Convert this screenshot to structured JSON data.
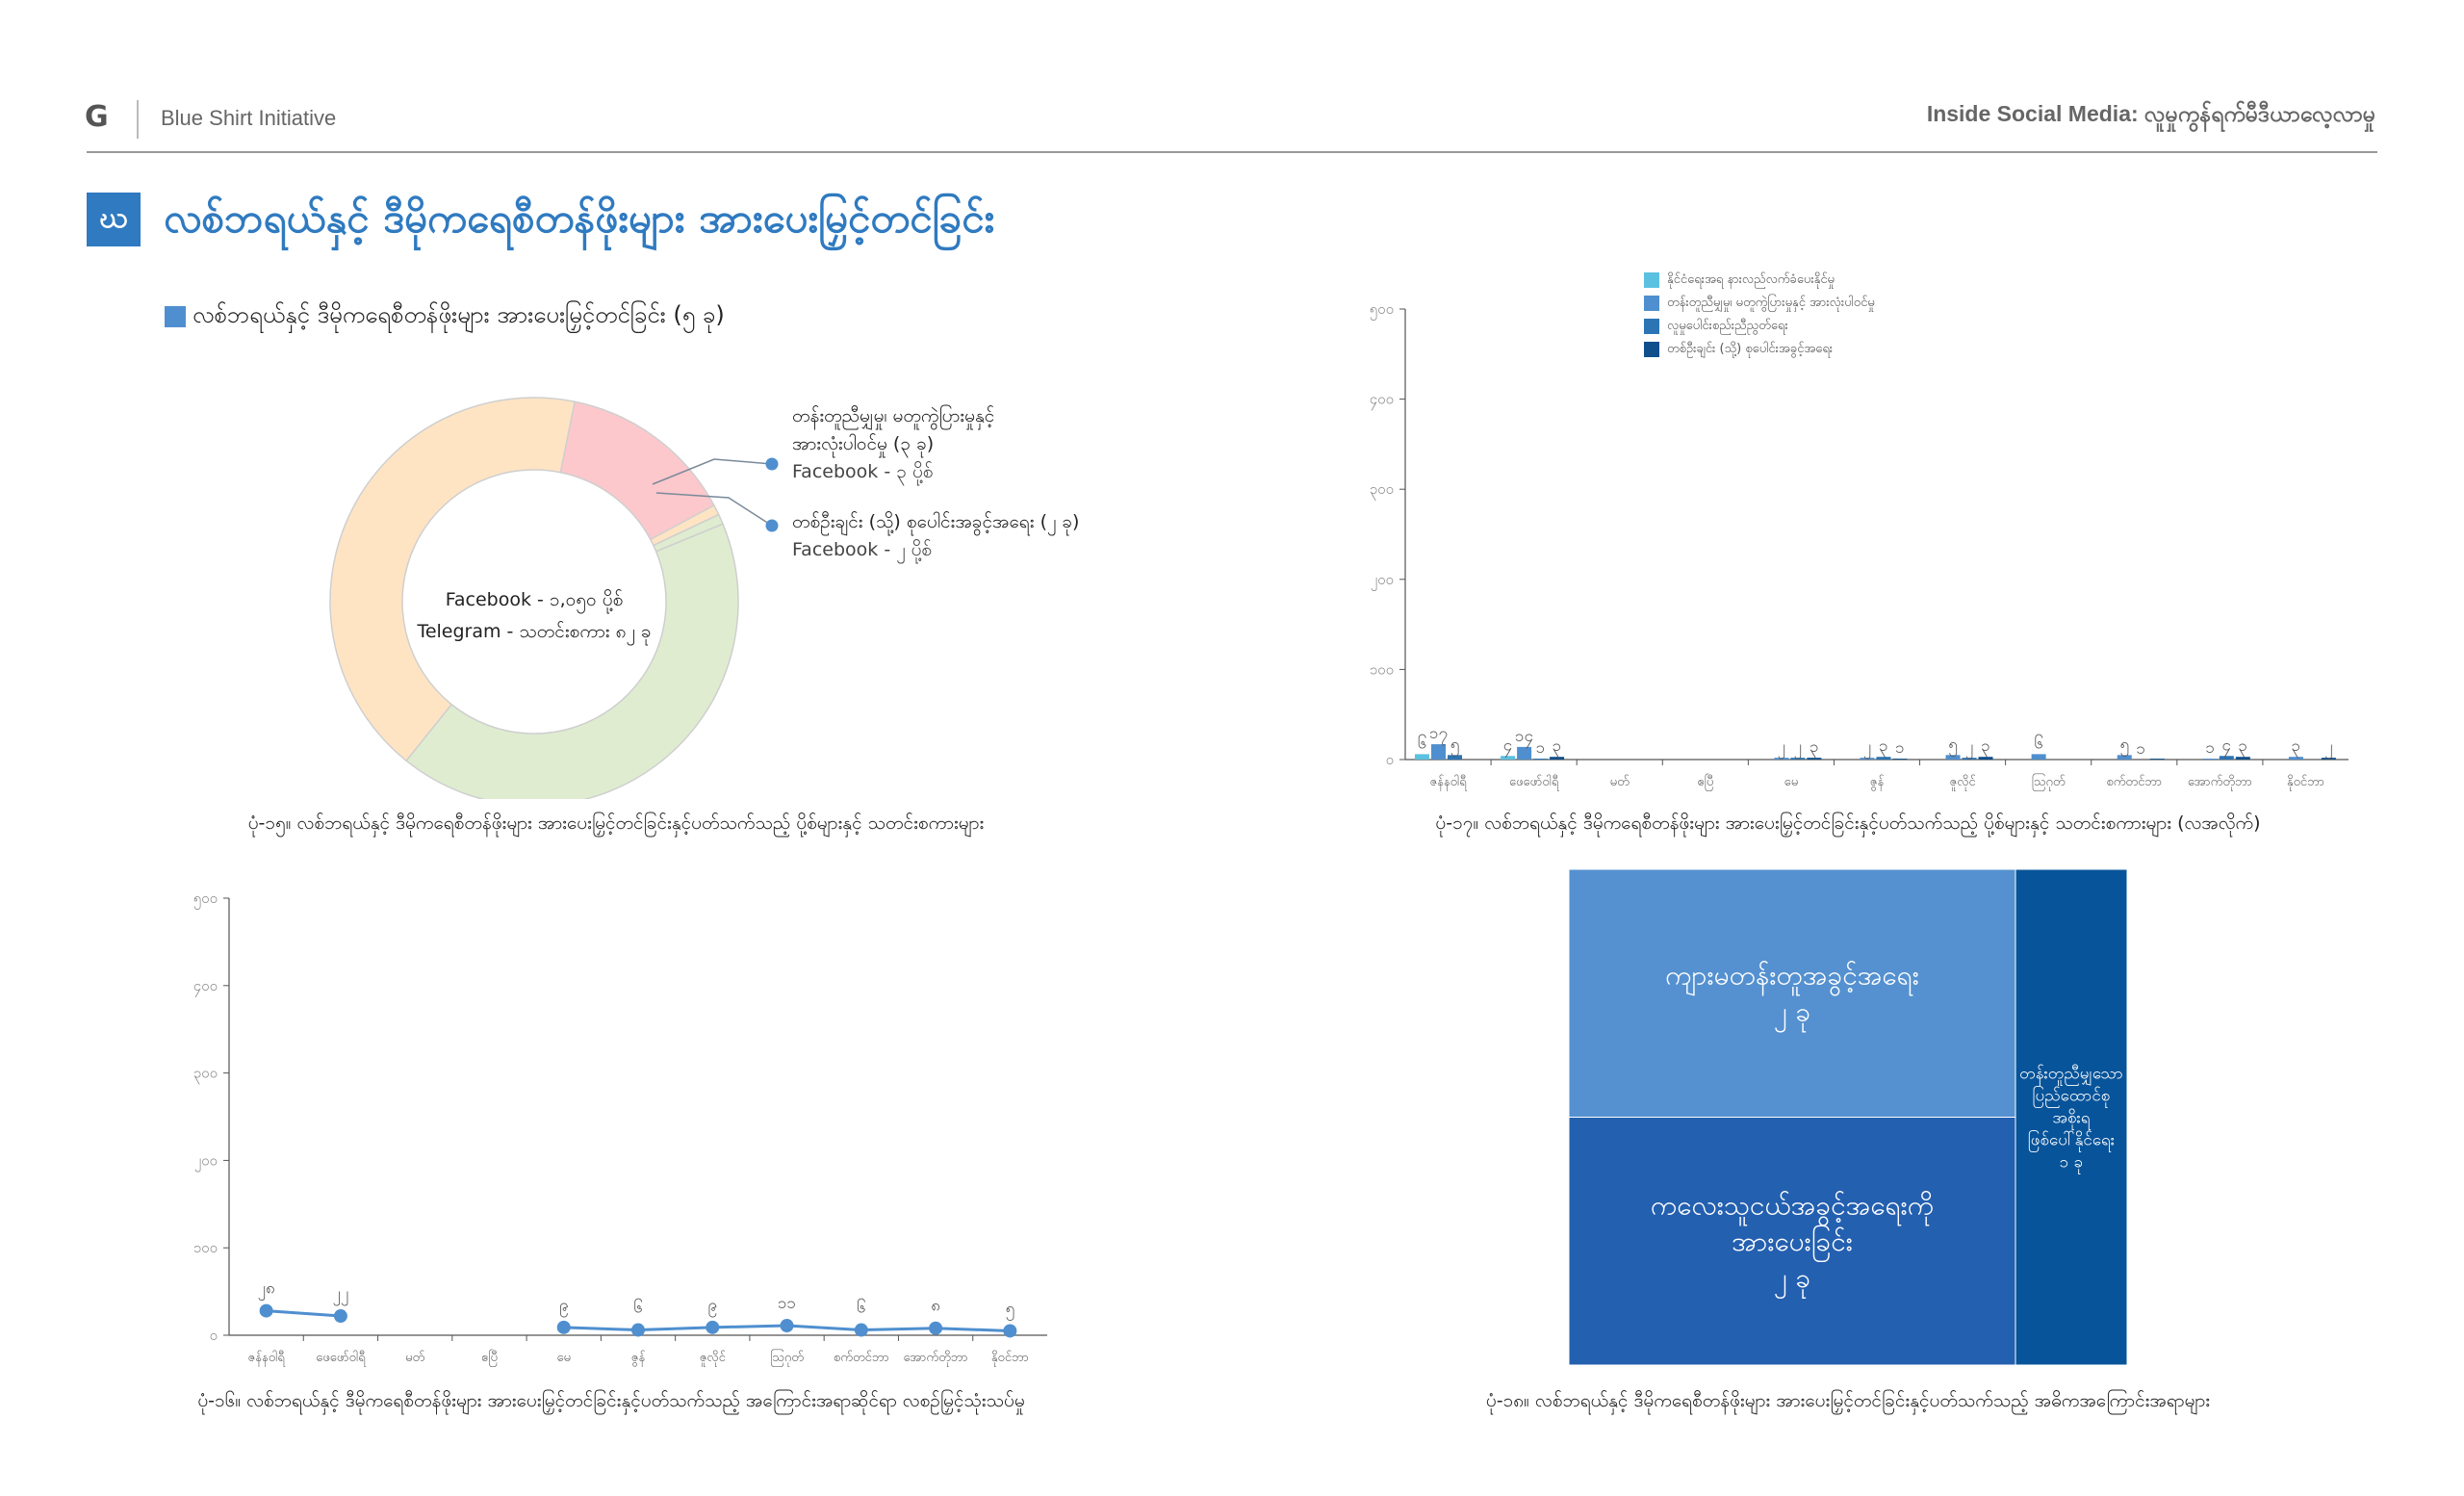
{
  "header": {
    "logo": "G",
    "org": "Blue Shirt Initiative",
    "report_title": "Inside Social Media: လူမှုကွန်ရက်မီဒီယာလေ့လာမှု"
  },
  "section": {
    "badge": "ဃ",
    "title": "လစ်ဘရယ်နှင့် ဒီမိုကရေစီတန်ဖိုးများ အားပေးမြှင့်တင်ခြင်း",
    "subtitle": "လစ်ဘရယ်နှင့် ဒီမိုကရေစီတန်ဖိုးများ အားပေးမြှင့်တင်ခြင်း (၅ ခု)"
  },
  "colors": {
    "accent": "#2f7ac0",
    "donut": [
      "#fcc8cc",
      "#dfecd0",
      "#ffe4c4"
    ],
    "bars": [
      "#5bc1e0",
      "#4f8fcf",
      "#2c74b4",
      "#0f4f8c"
    ],
    "treemap": [
      "#5591d0",
      "#2460b0",
      "#08549a"
    ]
  },
  "chart_data": [
    {
      "type": "pie",
      "variant": "donut",
      "center_text": [
        "Facebook - ၁,၀၅၀ ပို့စ်",
        "Telegram - သတင်းစကား ၈၂ ခု"
      ],
      "slices": [
        {
          "value": 14,
          "color_index": 0
        },
        {
          "value": 0.8,
          "color_index": 2
        },
        {
          "value": 0.8,
          "color_index": 1
        },
        {
          "value": 42,
          "color_index": 1
        },
        {
          "value": 42.4,
          "color_index": 2
        }
      ],
      "callouts": [
        {
          "lines": [
            "တန်းတူညီမျှမှု၊ မတူကွဲပြားမှုနှင့်",
            "အားလုံးပါဝင်မှု (၃ ခု)"
          ],
          "detail": "Facebook  -   ၃ ပို့စ်"
        },
        {
          "lines": [
            "တစ်ဦးချင်း (သို့) စုပေါင်းအခွင့်အရေး (၂ ခု)"
          ],
          "detail": "Facebook  -   ၂ ပို့စ်"
        }
      ],
      "caption": "ပုံ-၁၅။ လစ်ဘရယ်နှင့် ဒီမိုကရေစီတန်ဖိုးများ အားပေးမြှင့်တင်ခြင်းနှင့်ပတ်သက်သည့် ပို့စ်များနှင့် သတင်းစကားများ"
    },
    {
      "type": "bar",
      "categories": [
        "ဇန်နဝါရီ",
        "ဖေဖော်ဝါရီ",
        "မတ်",
        "ဧပြီ",
        "မေ",
        "ဇွန်",
        "ဇူလိုင်",
        "ဩဂုတ်",
        "စက်တင်ဘာ",
        "အောက်တိုဘာ",
        "နိုဝင်ဘာ"
      ],
      "ylim": [
        0,
        500
      ],
      "yticks": [
        "၀",
        "၁၀၀",
        "၂၀၀",
        "၃၀၀",
        "၄၀၀",
        "၅၀၀"
      ],
      "series": [
        {
          "name": "နိုင်ငံရေးအရ နားလည်လက်ခံပေးနိုင်မှု",
          "values": [
            6,
            4,
            0,
            0,
            0,
            0,
            0,
            0,
            0,
            0,
            0
          ]
        },
        {
          "name": "တန်းတူညီမျှမှု၊ မတူကွဲပြားမှုနှင့် အားလုံးပါဝင်မှု",
          "values": [
            17,
            14,
            0,
            0,
            2,
            2,
            5,
            6,
            5,
            1,
            3
          ]
        },
        {
          "name": "လူမှုပေါင်းစည်းညီညွတ်ရေး",
          "values": [
            5,
            1,
            0,
            0,
            2,
            3,
            2,
            0,
            0,
            4,
            0
          ]
        },
        {
          "name": "တစ်ဦးချင်း (သို့) စုပေါင်းအခွင့်အရေး",
          "values": [
            0,
            3,
            0,
            0,
            2,
            1,
            3,
            0,
            1,
            3,
            2
          ]
        }
      ],
      "labels": [
        [
          "၆",
          "၁၇",
          "၅",
          ""
        ],
        [
          "၄",
          "၁၄",
          "၁",
          "၃"
        ],
        [
          "",
          "",
          "",
          ""
        ],
        [
          "",
          "",
          "",
          ""
        ],
        [
          "",
          "၂",
          "၂",
          "၃"
        ],
        [
          "",
          "၂",
          "၃",
          "၁"
        ],
        [
          "",
          "၅",
          "၂",
          "၃"
        ],
        [
          "",
          "၆",
          "",
          ""
        ],
        [
          "",
          "၅",
          "၁",
          ""
        ],
        [
          "",
          "၁",
          "၄",
          "၃"
        ],
        [
          "",
          "၃",
          "",
          "၂"
        ]
      ],
      "legend_position": "top-right",
      "caption": "ပုံ-၁၇။ လစ်ဘရယ်နှင့် ဒီမိုကရေစီတန်ဖိုးများ အားပေးမြှင့်တင်ခြင်းနှင့်ပတ်သက်သည့် ပို့စ်များနှင့် သတင်းစကားများ (လအလိုက်)"
    },
    {
      "type": "line",
      "categories": [
        "ဇန်နဝါရီ",
        "ဖေဖော်ဝါရီ",
        "မတ်",
        "ဧပြီ",
        "မေ",
        "ဇွန်",
        "ဇူလိုင်",
        "ဩဂုတ်",
        "စက်တင်ဘာ",
        "အောက်တိုဘာ",
        "နိုဝင်ဘာ"
      ],
      "ylim": [
        0,
        500
      ],
      "yticks": [
        "၀",
        "၁၀၀",
        "၂၀၀",
        "၃၀၀",
        "၄၀၀",
        "၅၀၀"
      ],
      "segments": [
        {
          "points": [
            [
              0,
              28
            ],
            [
              1,
              22
            ]
          ],
          "labels": [
            "၂၈",
            "၂၂"
          ]
        },
        {
          "points": [
            [
              4,
              9
            ],
            [
              5,
              6
            ],
            [
              6,
              9
            ],
            [
              7,
              11
            ],
            [
              8,
              6
            ],
            [
              9,
              8
            ],
            [
              10,
              5
            ]
          ],
          "labels": [
            "၉",
            "၆",
            "၉",
            "၁၁",
            "၆",
            "၈",
            "၅"
          ]
        }
      ],
      "caption": "ပုံ-၁၆။ လစ်ဘရယ်နှင့် ဒီမိုကရေစီတန်ဖိုးများ အားပေးမြှင့်တင်ခြင်းနှင့်ပတ်သက်သည့် အကြောင်းအရာဆိုင်ရာ လစဉ်မြှင့်သုံးသပ်မှု"
    },
    {
      "type": "treemap",
      "items": [
        {
          "label": [
            "ကျားမတန်းတူအခွင့်အရေး"
          ],
          "value_label": "၂ ခု",
          "value": 2
        },
        {
          "label": [
            "ကလေးသူငယ်အခွင့်အရေးကို",
            "အားပေးခြင်း"
          ],
          "value_label": "၂ ခု",
          "value": 2
        },
        {
          "label": [
            "တန်းတူညီမျှသော",
            "ပြည်ထောင်စု",
            "အစိုးရ",
            "ဖြစ်ပေါ်နိုင်ရေး"
          ],
          "value_label": "၁ ခု",
          "value": 1
        }
      ],
      "caption": "ပုံ-၁၈။ လစ်ဘရယ်နှင့် ဒီမိုကရေစီတန်ဖိုးများ အားပေးမြှင့်တင်ခြင်းနှင့်ပတ်သက်သည့် အဓိကအကြောင်းအရာများ"
    }
  ]
}
